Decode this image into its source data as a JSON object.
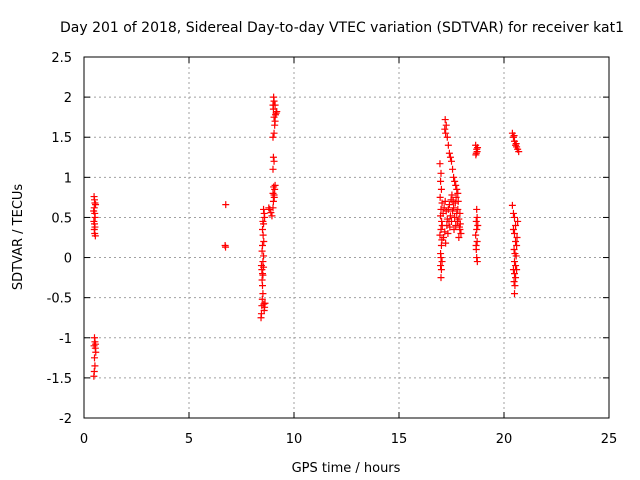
{
  "chart_data": {
    "type": "scatter",
    "title": "Day 201 of 2018, Sidereal Day-to-day VTEC variation (SDTVAR) for receiver kat1",
    "xlabel": "GPS time / hours",
    "ylabel": "SDTVAR / TECUs",
    "xlim": [
      0,
      25
    ],
    "ylim": [
      -2,
      2.5
    ],
    "xticks": [
      0,
      5,
      10,
      15,
      20,
      25
    ],
    "xtick_labels": [
      "0",
      "5",
      "10",
      "15",
      "20",
      "25"
    ],
    "yticks": [
      -2,
      -1.5,
      -1,
      -0.5,
      0,
      0.5,
      1,
      1.5,
      2,
      2.5
    ],
    "ytick_labels": [
      "-2",
      "-1.5",
      "-1",
      "-0.5",
      "0",
      "0.5",
      "1",
      "1.5",
      "2",
      "2.5"
    ],
    "grid": true,
    "marker": "+",
    "color": "#ff0000",
    "series": [
      {
        "name": "kat1",
        "points": [
          [
            0.48,
            0.76
          ],
          [
            0.5,
            0.72
          ],
          [
            0.52,
            0.68
          ],
          [
            0.49,
            0.62
          ],
          [
            0.51,
            0.55
          ],
          [
            0.53,
            0.5
          ],
          [
            0.47,
            0.45
          ],
          [
            0.5,
            0.42
          ],
          [
            0.52,
            0.38
          ],
          [
            0.49,
            0.35
          ],
          [
            0.51,
            0.3
          ],
          [
            0.54,
            0.27
          ],
          [
            0.55,
            0.66
          ],
          [
            0.46,
            0.58
          ],
          [
            0.5,
            -1.0
          ],
          [
            0.52,
            -1.05
          ],
          [
            0.48,
            -1.1
          ],
          [
            0.54,
            -1.13
          ],
          [
            0.56,
            -1.18
          ],
          [
            0.5,
            -1.25
          ],
          [
            0.52,
            -1.35
          ],
          [
            0.49,
            -1.42
          ],
          [
            0.47,
            -1.48
          ],
          [
            0.55,
            -1.08
          ],
          [
            6.75,
            0.66
          ],
          [
            6.72,
            0.15
          ],
          [
            6.74,
            0.13
          ],
          [
            8.45,
            -0.1
          ],
          [
            8.47,
            -0.15
          ],
          [
            8.5,
            -0.2
          ],
          [
            8.52,
            -0.22
          ],
          [
            8.48,
            -0.28
          ],
          [
            8.55,
            -0.12
          ],
          [
            8.5,
            -0.35
          ],
          [
            8.52,
            -0.45
          ],
          [
            8.49,
            -0.52
          ],
          [
            8.47,
            -0.6
          ],
          [
            8.45,
            -0.7
          ],
          [
            8.43,
            -0.75
          ],
          [
            8.56,
            -0.58
          ],
          [
            8.6,
            -0.62
          ],
          [
            8.58,
            -0.66
          ],
          [
            8.62,
            -0.57
          ],
          [
            8.55,
            0.6
          ],
          [
            8.58,
            0.55
          ],
          [
            8.6,
            0.5
          ],
          [
            8.52,
            0.45
          ],
          [
            8.55,
            0.42
          ],
          [
            8.5,
            0.35
          ],
          [
            8.53,
            0.28
          ],
          [
            8.56,
            0.2
          ],
          [
            8.5,
            0.15
          ],
          [
            8.48,
            0.08
          ],
          [
            8.55,
            0.02
          ],
          [
            8.52,
            -0.05
          ],
          [
            8.8,
            0.62
          ],
          [
            8.85,
            0.6
          ],
          [
            8.9,
            0.56
          ],
          [
            8.95,
            0.52
          ],
          [
            9.0,
            0.62
          ],
          [
            9.02,
            0.7
          ],
          [
            9.05,
            0.78
          ],
          [
            9.08,
            0.85
          ],
          [
            9.1,
            0.9
          ],
          [
            9.03,
            0.88
          ],
          [
            9.06,
            0.75
          ],
          [
            9.0,
            0.8
          ],
          [
            9.0,
            1.1
          ],
          [
            9.05,
            1.2
          ],
          [
            9.02,
            1.25
          ],
          [
            9.0,
            1.5
          ],
          [
            9.05,
            1.55
          ],
          [
            9.08,
            1.65
          ],
          [
            9.1,
            1.7
          ],
          [
            9.05,
            1.75
          ],
          [
            9.12,
            1.78
          ],
          [
            9.15,
            1.8
          ],
          [
            9.02,
            1.85
          ],
          [
            9.0,
            1.9
          ],
          [
            9.05,
            1.95
          ],
          [
            9.03,
            2.0
          ],
          [
            9.1,
            1.9
          ],
          [
            9.18,
            1.82
          ],
          [
            16.95,
            1.17
          ],
          [
            17.0,
            1.05
          ],
          [
            16.98,
            0.95
          ],
          [
            17.02,
            0.85
          ],
          [
            16.96,
            0.75
          ],
          [
            17.05,
            0.68
          ],
          [
            17.0,
            0.6
          ],
          [
            16.98,
            0.52
          ],
          [
            17.03,
            0.45
          ],
          [
            17.06,
            0.4
          ],
          [
            17.0,
            0.35
          ],
          [
            16.95,
            0.28
          ],
          [
            17.04,
            0.22
          ],
          [
            17.02,
            0.15
          ],
          [
            16.98,
            0.05
          ],
          [
            17.0,
            0.0
          ],
          [
            17.05,
            -0.05
          ],
          [
            16.98,
            -0.1
          ],
          [
            17.02,
            -0.15
          ],
          [
            17.0,
            -0.25
          ],
          [
            17.2,
            1.72
          ],
          [
            17.25,
            1.65
          ],
          [
            17.18,
            1.6
          ],
          [
            17.22,
            1.55
          ],
          [
            17.3,
            1.5
          ],
          [
            17.35,
            1.4
          ],
          [
            17.4,
            1.3
          ],
          [
            17.45,
            1.25
          ],
          [
            17.5,
            1.2
          ],
          [
            17.55,
            1.1
          ],
          [
            17.6,
            1.0
          ],
          [
            17.65,
            0.95
          ],
          [
            17.7,
            0.9
          ],
          [
            17.75,
            0.85
          ],
          [
            17.8,
            0.8
          ],
          [
            17.1,
            0.55
          ],
          [
            17.15,
            0.62
          ],
          [
            17.2,
            0.7
          ],
          [
            17.25,
            0.58
          ],
          [
            17.3,
            0.48
          ],
          [
            17.35,
            0.6
          ],
          [
            17.4,
            0.66
          ],
          [
            17.45,
            0.52
          ],
          [
            17.5,
            0.45
          ],
          [
            17.55,
            0.58
          ],
          [
            17.6,
            0.62
          ],
          [
            17.65,
            0.5
          ],
          [
            17.7,
            0.4
          ],
          [
            17.75,
            0.55
          ],
          [
            17.8,
            0.6
          ],
          [
            17.85,
            0.48
          ],
          [
            17.9,
            0.35
          ],
          [
            17.95,
            0.3
          ],
          [
            17.85,
            0.25
          ],
          [
            17.9,
            0.55
          ],
          [
            17.12,
            0.25
          ],
          [
            17.18,
            0.32
          ],
          [
            17.22,
            0.18
          ],
          [
            17.28,
            0.4
          ],
          [
            17.33,
            0.3
          ],
          [
            17.38,
            0.45
          ],
          [
            17.42,
            0.38
          ],
          [
            17.48,
            0.72
          ],
          [
            17.52,
            0.78
          ],
          [
            17.58,
            0.7
          ],
          [
            17.62,
            0.35
          ],
          [
            17.68,
            0.68
          ],
          [
            17.72,
            0.75
          ],
          [
            17.78,
            0.45
          ],
          [
            17.82,
            0.7
          ],
          [
            17.88,
            0.38
          ],
          [
            17.92,
            0.42
          ],
          [
            18.65,
            1.4
          ],
          [
            18.7,
            1.35
          ],
          [
            18.68,
            1.3
          ],
          [
            18.72,
            1.32
          ],
          [
            18.66,
            1.28
          ],
          [
            18.74,
            1.37
          ],
          [
            18.7,
            0.6
          ],
          [
            18.72,
            0.5
          ],
          [
            18.68,
            0.45
          ],
          [
            18.75,
            0.4
          ],
          [
            18.7,
            0.35
          ],
          [
            18.65,
            0.28
          ],
          [
            18.72,
            0.2
          ],
          [
            18.68,
            0.1
          ],
          [
            18.7,
            0.0
          ],
          [
            18.73,
            -0.05
          ],
          [
            18.67,
            0.15
          ],
          [
            20.4,
            1.55
          ],
          [
            20.45,
            1.5
          ],
          [
            20.5,
            1.45
          ],
          [
            20.55,
            1.4
          ],
          [
            20.6,
            1.38
          ],
          [
            20.65,
            1.35
          ],
          [
            20.7,
            1.32
          ],
          [
            20.48,
            1.52
          ],
          [
            20.58,
            1.42
          ],
          [
            20.4,
            0.65
          ],
          [
            20.45,
            0.55
          ],
          [
            20.5,
            0.5
          ],
          [
            20.55,
            0.4
          ],
          [
            20.45,
            0.35
          ],
          [
            20.5,
            0.3
          ],
          [
            20.55,
            0.2
          ],
          [
            20.6,
            0.15
          ],
          [
            20.48,
            0.1
          ],
          [
            20.52,
            0.05
          ],
          [
            20.58,
            0.02
          ],
          [
            20.5,
            -0.05
          ],
          [
            20.55,
            -0.1
          ],
          [
            20.45,
            -0.15
          ],
          [
            20.5,
            -0.2
          ],
          [
            20.55,
            -0.25
          ],
          [
            20.48,
            -0.3
          ],
          [
            20.52,
            -0.35
          ],
          [
            20.5,
            -0.45
          ],
          [
            20.62,
            0.25
          ],
          [
            20.65,
            0.45
          ],
          [
            20.6,
            -0.15
          ]
        ]
      }
    ]
  }
}
